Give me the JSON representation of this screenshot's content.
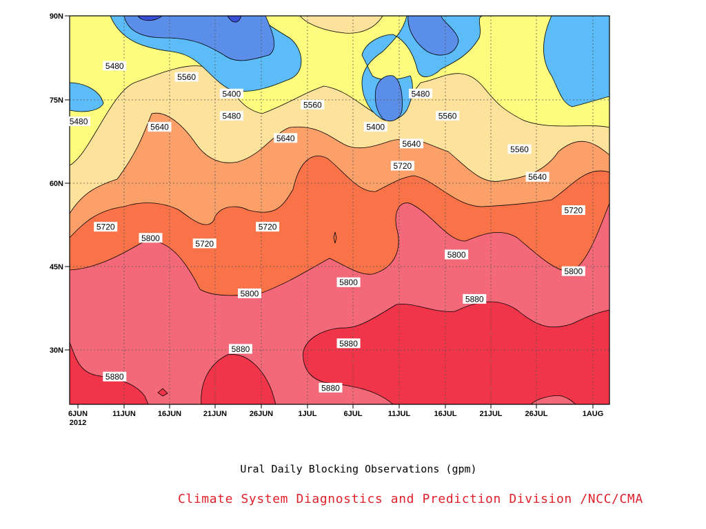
{
  "chart_data": {
    "type": "filled-contour",
    "title": "",
    "xlabel": "Ural Daily Blocking Observations (gpm)",
    "ylabel": "",
    "x_ticks": [
      "6JUN",
      "11JUN",
      "16JUN",
      "21JUN",
      "26JUN",
      "1JUL",
      "6JUL",
      "11JUL",
      "16JUL",
      "21JUL",
      "26JUL",
      "1AUG"
    ],
    "x_year_label": "2012",
    "x_range": [
      "2012-06-06",
      "2012-08-05"
    ],
    "y_ticks": [
      "30N",
      "45N",
      "60N",
      "75N",
      "90N"
    ],
    "y_range": [
      20,
      90
    ],
    "contour_levels": [
      5400,
      5480,
      5560,
      5640,
      5720,
      5800,
      5880
    ],
    "grid": "dotted",
    "fill_colors": {
      "below_5400": "#3a4fd8",
      "5400_5480": "#5a8ee8",
      "5480_5560": "#5bbcf8",
      "5560_5640": "#fdfc7e",
      "5640_5720": "#fde29b",
      "5720_5800": "#fca06a",
      "5800_5880": "#fa7248",
      "5880_5960": "#f3697a",
      "above_5960": "#f0344a"
    },
    "contour_labels": [
      {
        "text": "5480",
        "date": "2012-06-11",
        "lat": 81
      },
      {
        "text": "5560",
        "date": "2012-06-19",
        "lat": 79
      },
      {
        "text": "5400",
        "date": "2012-06-24",
        "lat": 76
      },
      {
        "text": "5480",
        "date": "2012-06-07",
        "lat": 71
      },
      {
        "text": "5640",
        "date": "2012-06-16",
        "lat": 70
      },
      {
        "text": "5480",
        "date": "2012-06-24",
        "lat": 72
      },
      {
        "text": "5560",
        "date": "2012-07-03",
        "lat": 74
      },
      {
        "text": "5640",
        "date": "2012-06-30",
        "lat": 68
      },
      {
        "text": "5400",
        "date": "2012-07-10",
        "lat": 70
      },
      {
        "text": "5480",
        "date": "2012-07-15",
        "lat": 76
      },
      {
        "text": "5560",
        "date": "2012-07-18",
        "lat": 72
      },
      {
        "text": "5640",
        "date": "2012-07-14",
        "lat": 67
      },
      {
        "text": "5720",
        "date": "2012-07-13",
        "lat": 63
      },
      {
        "text": "5560",
        "date": "2012-07-26",
        "lat": 66
      },
      {
        "text": "5640",
        "date": "2012-07-28",
        "lat": 61
      },
      {
        "text": "5720",
        "date": "2012-08-01",
        "lat": 55
      },
      {
        "text": "5720",
        "date": "2012-06-10",
        "lat": 52
      },
      {
        "text": "5800",
        "date": "2012-06-15",
        "lat": 50
      },
      {
        "text": "5720",
        "date": "2012-06-21",
        "lat": 49
      },
      {
        "text": "5720",
        "date": "2012-06-28",
        "lat": 52
      },
      {
        "text": "5800",
        "date": "2012-06-26",
        "lat": 40
      },
      {
        "text": "5800",
        "date": "2012-07-07",
        "lat": 42
      },
      {
        "text": "5800",
        "date": "2012-07-19",
        "lat": 47
      },
      {
        "text": "5800",
        "date": "2012-08-01",
        "lat": 44
      },
      {
        "text": "5880",
        "date": "2012-07-21",
        "lat": 39
      },
      {
        "text": "5880",
        "date": "2012-07-07",
        "lat": 31
      },
      {
        "text": "5880",
        "date": "2012-06-25",
        "lat": 30
      },
      {
        "text": "5880",
        "date": "2012-06-11",
        "lat": 25
      },
      {
        "text": "5880",
        "date": "2012-07-05",
        "lat": 23
      }
    ]
  },
  "credit": "Climate System Diagnostics and Prediction Division /NCC/CMA"
}
